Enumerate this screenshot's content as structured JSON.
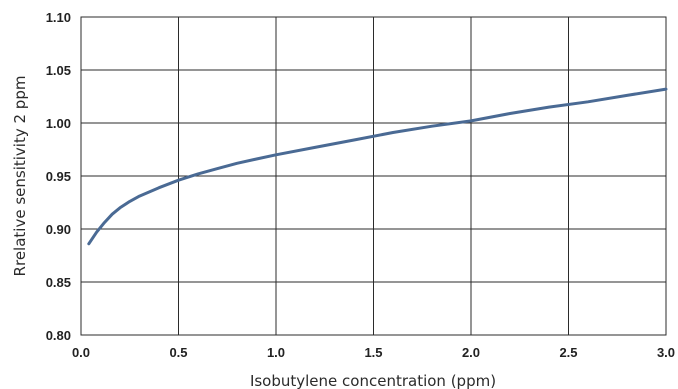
{
  "chart_data": {
    "type": "line",
    "title": "",
    "xlabel": "Isobutylene concentration (ppm)",
    "ylabel": "Rrelative sensitivity 2 ppm",
    "xlim": [
      0.0,
      3.0
    ],
    "ylim": [
      0.8,
      1.1
    ],
    "xticks": [
      "0.0",
      "0.5",
      "1.0",
      "1.5",
      "2.0",
      "2.5",
      "3.0"
    ],
    "yticks": [
      "1.10",
      "1.05",
      "1.00",
      "0.95",
      "0.90",
      "0.85",
      "0.80"
    ],
    "grid": true,
    "legend": "none",
    "series_color": "#4a6a94",
    "series": [
      {
        "x": [
          0.04,
          0.08,
          0.12,
          0.16,
          0.2,
          0.25,
          0.3,
          0.4,
          0.5,
          0.6,
          0.7,
          0.8,
          0.9,
          1.0,
          1.2,
          1.4,
          1.6,
          1.8,
          2.0,
          2.2,
          2.4,
          2.6,
          2.8,
          3.0
        ],
        "y": [
          0.886,
          0.897,
          0.906,
          0.914,
          0.92,
          0.926,
          0.931,
          0.939,
          0.946,
          0.952,
          0.957,
          0.962,
          0.966,
          0.97,
          0.977,
          0.984,
          0.991,
          0.997,
          1.002,
          1.009,
          1.015,
          1.02,
          1.026,
          1.032
        ]
      }
    ]
  }
}
